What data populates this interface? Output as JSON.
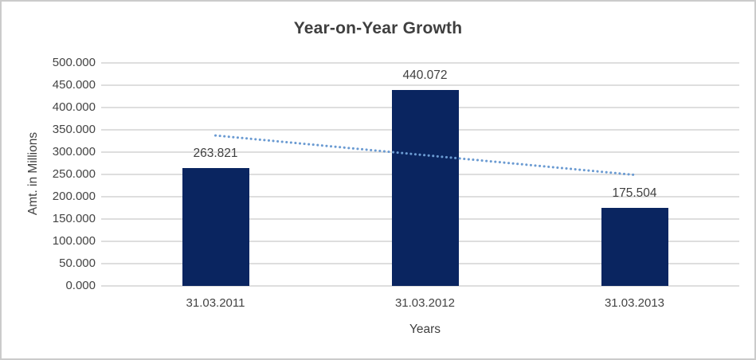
{
  "chart_data": {
    "type": "bar",
    "title": "Year-on-Year Growth",
    "xlabel": "Years",
    "ylabel": "Amt. in Millions",
    "categories": [
      "31.03.2011",
      "31.03.2012",
      "31.03.2013"
    ],
    "values": [
      263.821,
      440.072,
      175.504
    ],
    "data_labels": [
      "263.821",
      "440.072",
      "175.504"
    ],
    "ylim": [
      0,
      500
    ],
    "ytick_step": 50,
    "ytick_labels": [
      "0.000",
      "50.000",
      "100.000",
      "150.000",
      "200.000",
      "250.000",
      "300.000",
      "350.000",
      "400.000",
      "450.000",
      "500.000"
    ],
    "grid": true,
    "legend": false,
    "bar_color": "#0A2560",
    "trendline": {
      "type": "linear",
      "style": "dotted",
      "color": "#6B9BD2",
      "start_value": 337.3,
      "end_value": 249.0
    },
    "colors": {
      "grid": "#DEDEDE",
      "text": "#404040",
      "title": "#3F3F3F",
      "background": "#FFFFFF",
      "border": "#CBCBCB"
    }
  }
}
